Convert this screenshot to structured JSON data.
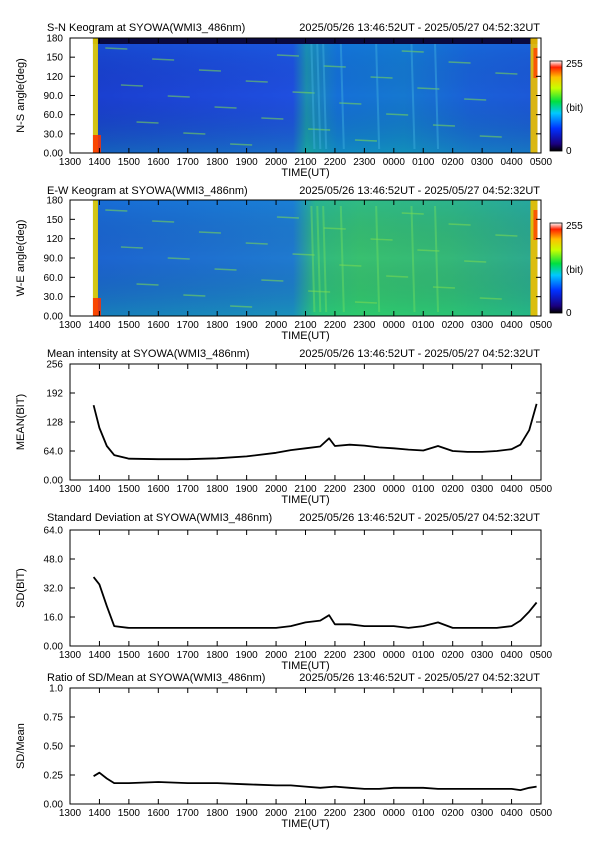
{
  "time_window": "2025/05/26 13:46:52UT - 2025/05/27 04:52:32UT",
  "x_axis": {
    "label": "TIME(UT)",
    "ticks": [
      "1300",
      "1400",
      "1500",
      "1600",
      "1700",
      "1800",
      "1900",
      "2000",
      "2100",
      "2200",
      "2300",
      "0000",
      "0100",
      "0200",
      "0300",
      "0400",
      "0500"
    ],
    "range_hours": [
      13,
      29
    ]
  },
  "colorbar": {
    "max_label": "255",
    "unit_label": "(bit)",
    "min_label": "0"
  },
  "panels": [
    {
      "id": "sn",
      "title": "S-N Keogram at SYOWA(WMI3_486nm)",
      "ylabel": "N-S angle(deg)",
      "yticks": [
        "0.00",
        "30.0",
        "60.0",
        "90.0",
        "120",
        "150",
        "180"
      ]
    },
    {
      "id": "ew",
      "title": "E-W Keogram at SYOWA(WMI3_486nm)",
      "ylabel": "W-E angle(deg)",
      "yticks": [
        "0.00",
        "30.0",
        "60.0",
        "90.0",
        "120",
        "150",
        "180"
      ]
    },
    {
      "id": "mean",
      "title": "Mean intensity at SYOWA(WMI3_486nm)",
      "ylabel": "MEAN(BIT)",
      "yticks": [
        "0.00",
        "64.0",
        "128",
        "192",
        "256"
      ]
    },
    {
      "id": "sd",
      "title": "Standard Deviation at SYOWA(WMI3_486nm)",
      "ylabel": "SD(BIT)",
      "yticks": [
        "0.00",
        "16.0",
        "32.0",
        "48.0",
        "64.0"
      ]
    },
    {
      "id": "ratio",
      "title": "Ratio of SD/Mean at SYOWA(WMI3_486nm)",
      "ylabel": "SD/Mean",
      "yticks": [
        "0.00",
        "0.25",
        "0.50",
        "0.75",
        "1.0"
      ]
    }
  ],
  "chart_data": [
    {
      "type": "heatmap",
      "title": "S-N Keogram at SYOWA(WMI3_486nm)",
      "xlabel": "TIME(UT)",
      "ylabel": "N-S angle(deg)",
      "ylim": [
        0,
        180
      ],
      "color_range": [
        0,
        255
      ],
      "colormap": "rainbow"
    },
    {
      "type": "heatmap",
      "title": "E-W Keogram at SYOWA(WMI3_486nm)",
      "xlabel": "TIME(UT)",
      "ylabel": "W-E angle(deg)",
      "ylim": [
        0,
        180
      ],
      "color_range": [
        0,
        255
      ],
      "colormap": "rainbow"
    },
    {
      "type": "line",
      "title": "Mean intensity at SYOWA(WMI3_486nm)",
      "xlabel": "TIME(UT)",
      "ylabel": "MEAN(BIT)",
      "ylim": [
        0,
        256
      ],
      "x": [
        13.8,
        14.0,
        14.25,
        14.5,
        15.0,
        16.0,
        17.0,
        18.0,
        19.0,
        20.0,
        20.5,
        21.0,
        21.5,
        21.8,
        22.0,
        22.5,
        23.0,
        23.5,
        24.0,
        24.5,
        25.0,
        25.5,
        26.0,
        26.5,
        27.0,
        27.5,
        28.0,
        28.3,
        28.6,
        28.85
      ],
      "y": [
        165,
        115,
        75,
        55,
        47,
        46,
        46,
        48,
        52,
        60,
        66,
        70,
        74,
        92,
        75,
        78,
        76,
        72,
        70,
        67,
        65,
        75,
        64,
        62,
        62,
        64,
        68,
        78,
        110,
        168
      ]
    },
    {
      "type": "line",
      "title": "Standard Deviation at SYOWA(WMI3_486nm)",
      "xlabel": "TIME(UT)",
      "ylabel": "SD(BIT)",
      "ylim": [
        0,
        64
      ],
      "x": [
        13.8,
        14.0,
        14.25,
        14.5,
        15.0,
        16.0,
        17.0,
        18.0,
        19.0,
        20.0,
        20.5,
        21.0,
        21.5,
        21.8,
        22.0,
        22.5,
        23.0,
        23.5,
        24.0,
        24.5,
        25.0,
        25.5,
        26.0,
        26.5,
        27.0,
        27.5,
        28.0,
        28.3,
        28.6,
        28.85
      ],
      "y": [
        38,
        34,
        22,
        11,
        10,
        10,
        10,
        10,
        10,
        10,
        11,
        13,
        14,
        17,
        12,
        12,
        11,
        11,
        11,
        10,
        11,
        13,
        10,
        10,
        10,
        10,
        11,
        14,
        19,
        24
      ]
    },
    {
      "type": "line",
      "title": "Ratio of SD/Mean at SYOWA(WMI3_486nm)",
      "xlabel": "TIME(UT)",
      "ylabel": "SD/Mean",
      "ylim": [
        0,
        1.0
      ],
      "x": [
        13.8,
        14.0,
        14.25,
        14.5,
        15.0,
        16.0,
        17.0,
        18.0,
        19.0,
        20.0,
        20.5,
        21.0,
        21.5,
        22.0,
        22.5,
        23.0,
        23.5,
        24.0,
        24.5,
        25.0,
        25.5,
        26.0,
        26.5,
        27.0,
        27.5,
        28.0,
        28.3,
        28.6,
        28.85
      ],
      "y": [
        0.24,
        0.27,
        0.22,
        0.18,
        0.18,
        0.19,
        0.18,
        0.18,
        0.17,
        0.16,
        0.16,
        0.15,
        0.14,
        0.15,
        0.14,
        0.13,
        0.13,
        0.14,
        0.14,
        0.14,
        0.13,
        0.13,
        0.13,
        0.13,
        0.13,
        0.13,
        0.12,
        0.14,
        0.15
      ]
    }
  ]
}
